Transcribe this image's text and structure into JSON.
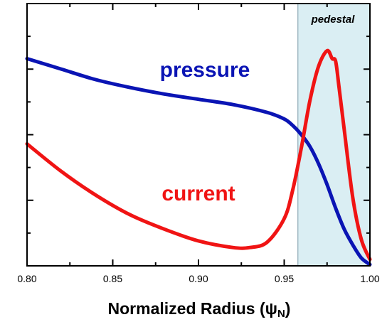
{
  "chart_data": {
    "type": "line",
    "title": "",
    "xlabel": "Normalized Radius (ψ",
    "xlabel_subscript": "N",
    "xlabel_suffix": ")",
    "ylabel": "",
    "xlim": [
      0.8,
      1.0
    ],
    "ylim": [
      0,
      1
    ],
    "x_ticks": [
      "0.80",
      "0.85",
      "0.90",
      "0.95",
      "1.00"
    ],
    "y_ticks_labeled": false,
    "grid": false,
    "region": {
      "label": "pedestal",
      "x_start": 0.958,
      "x_end": 1.0,
      "color": "#daeef3"
    },
    "series": [
      {
        "name": "pressure",
        "color": "#0a14b4",
        "x": [
          0.8,
          0.82,
          0.84,
          0.86,
          0.88,
          0.9,
          0.92,
          0.94,
          0.95,
          0.955,
          0.96,
          0.965,
          0.97,
          0.975,
          0.98,
          0.985,
          0.99,
          0.995,
          1.0
        ],
        "y": [
          0.79,
          0.75,
          0.71,
          0.68,
          0.655,
          0.635,
          0.615,
          0.585,
          0.56,
          0.535,
          0.5,
          0.455,
          0.39,
          0.31,
          0.22,
          0.14,
          0.08,
          0.03,
          0.005
        ]
      },
      {
        "name": "current",
        "color": "#f01414",
        "x": [
          0.8,
          0.82,
          0.84,
          0.86,
          0.88,
          0.9,
          0.92,
          0.93,
          0.94,
          0.95,
          0.955,
          0.96,
          0.965,
          0.97,
          0.975,
          0.978,
          0.98,
          0.982,
          0.985,
          0.99,
          0.995,
          1.0
        ],
        "y": [
          0.465,
          0.36,
          0.27,
          0.195,
          0.14,
          0.095,
          0.07,
          0.07,
          0.09,
          0.18,
          0.29,
          0.45,
          0.63,
          0.76,
          0.82,
          0.79,
          0.78,
          0.68,
          0.52,
          0.26,
          0.1,
          0.025
        ]
      }
    ]
  }
}
